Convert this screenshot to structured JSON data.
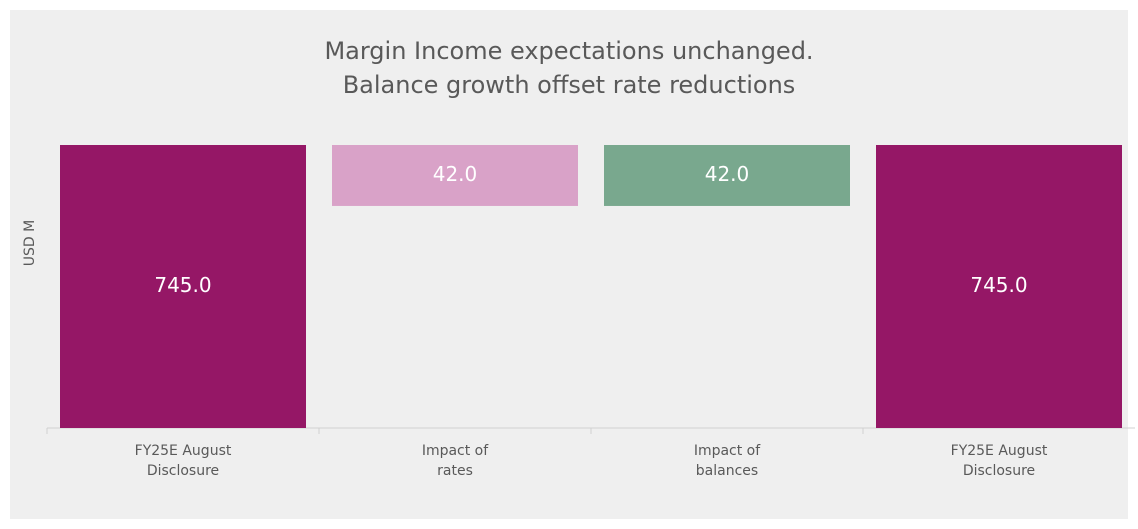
{
  "chart_data": {
    "type": "waterfall",
    "title": "Margin Income expectations unchanged.\nBalance growth offset rate reductions",
    "ylabel": "USD M",
    "categories": [
      "FY25E August\nDisclosure",
      "Impact of\nrates",
      "Impact of\nbalances",
      "FY25E August\nDisclosure"
    ],
    "values": [
      745,
      -42,
      42,
      745
    ],
    "value_labels": [
      "745.0",
      "42.0",
      "42.0",
      "745.0"
    ],
    "colors": [
      "#951766",
      "#d9a2c8",
      "#79a88e",
      "#951766"
    ],
    "ylim": [
      550,
      745
    ]
  }
}
